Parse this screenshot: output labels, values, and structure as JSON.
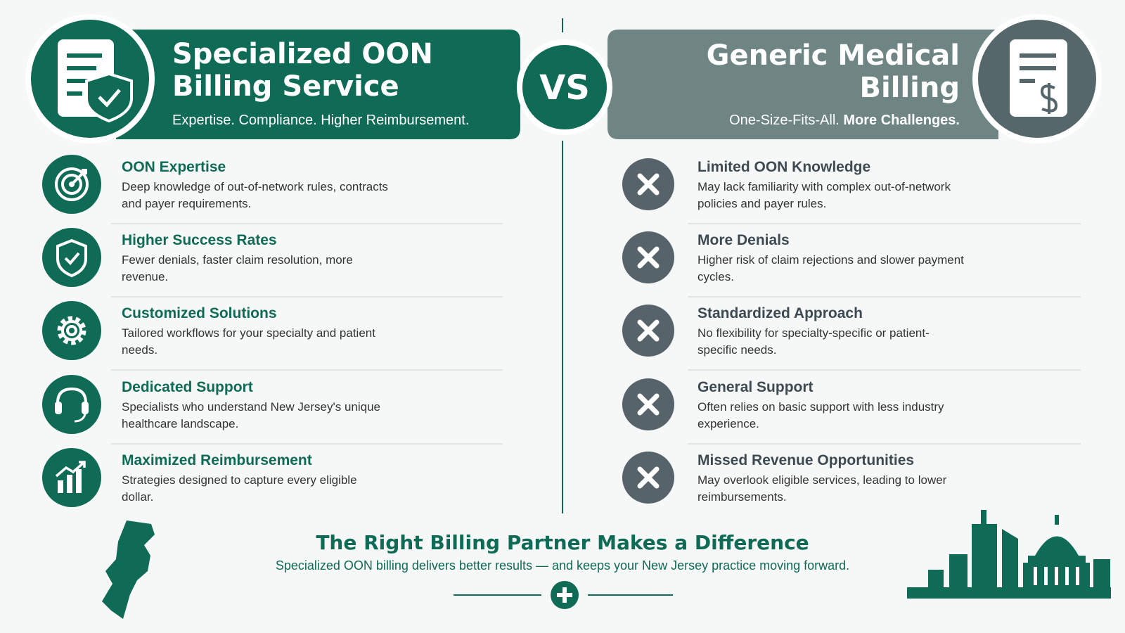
{
  "left": {
    "title_line1": "Specialized OON",
    "title_line2": "Billing Service",
    "subtitle": "Expertise. Compliance. Higher Reimbursement.",
    "items": [
      {
        "title": "OON Expertise",
        "text": "Deep knowledge of out-of-network rules, contracts and payer requirements."
      },
      {
        "title": "Higher Success Rates",
        "text": "Fewer denials, faster claim resolution, more revenue."
      },
      {
        "title": "Customized Solutions",
        "text": "Tailored workflows for your specialty and patient needs."
      },
      {
        "title": "Dedicated Support",
        "text": "Specialists who understand New Jersey's unique healthcare landscape."
      },
      {
        "title": "Maximized Reimbursement",
        "text": "Strategies designed to capture every eligible dollar."
      }
    ]
  },
  "vs": "VS",
  "right": {
    "title_line1": "Generic Medical",
    "title_line2": "Billing",
    "subtitle_plain": "One-Size-Fits-All.",
    "subtitle_bold": "More Challenges.",
    "items": [
      {
        "title": "Limited OON Knowledge",
        "text": "May lack familiarity with complex out-of-network policies and payer rules."
      },
      {
        "title": "More Denials",
        "text": "Higher risk of claim rejections and slower payment cycles."
      },
      {
        "title": "Standardized Approach",
        "text": "No flexibility for specialty-specific or patient-specific needs."
      },
      {
        "title": "General Support",
        "text": "Often relies on basic support with less industry experience."
      },
      {
        "title": "Missed Revenue Opportunities",
        "text": "May overlook eligible services, leading to lower reimbursements."
      }
    ]
  },
  "footer": {
    "title": "The Right Billing Partner Makes a Difference",
    "subtitle": "Specialized OON billing delivers better results — and keeps your New Jersey practice moving forward."
  }
}
